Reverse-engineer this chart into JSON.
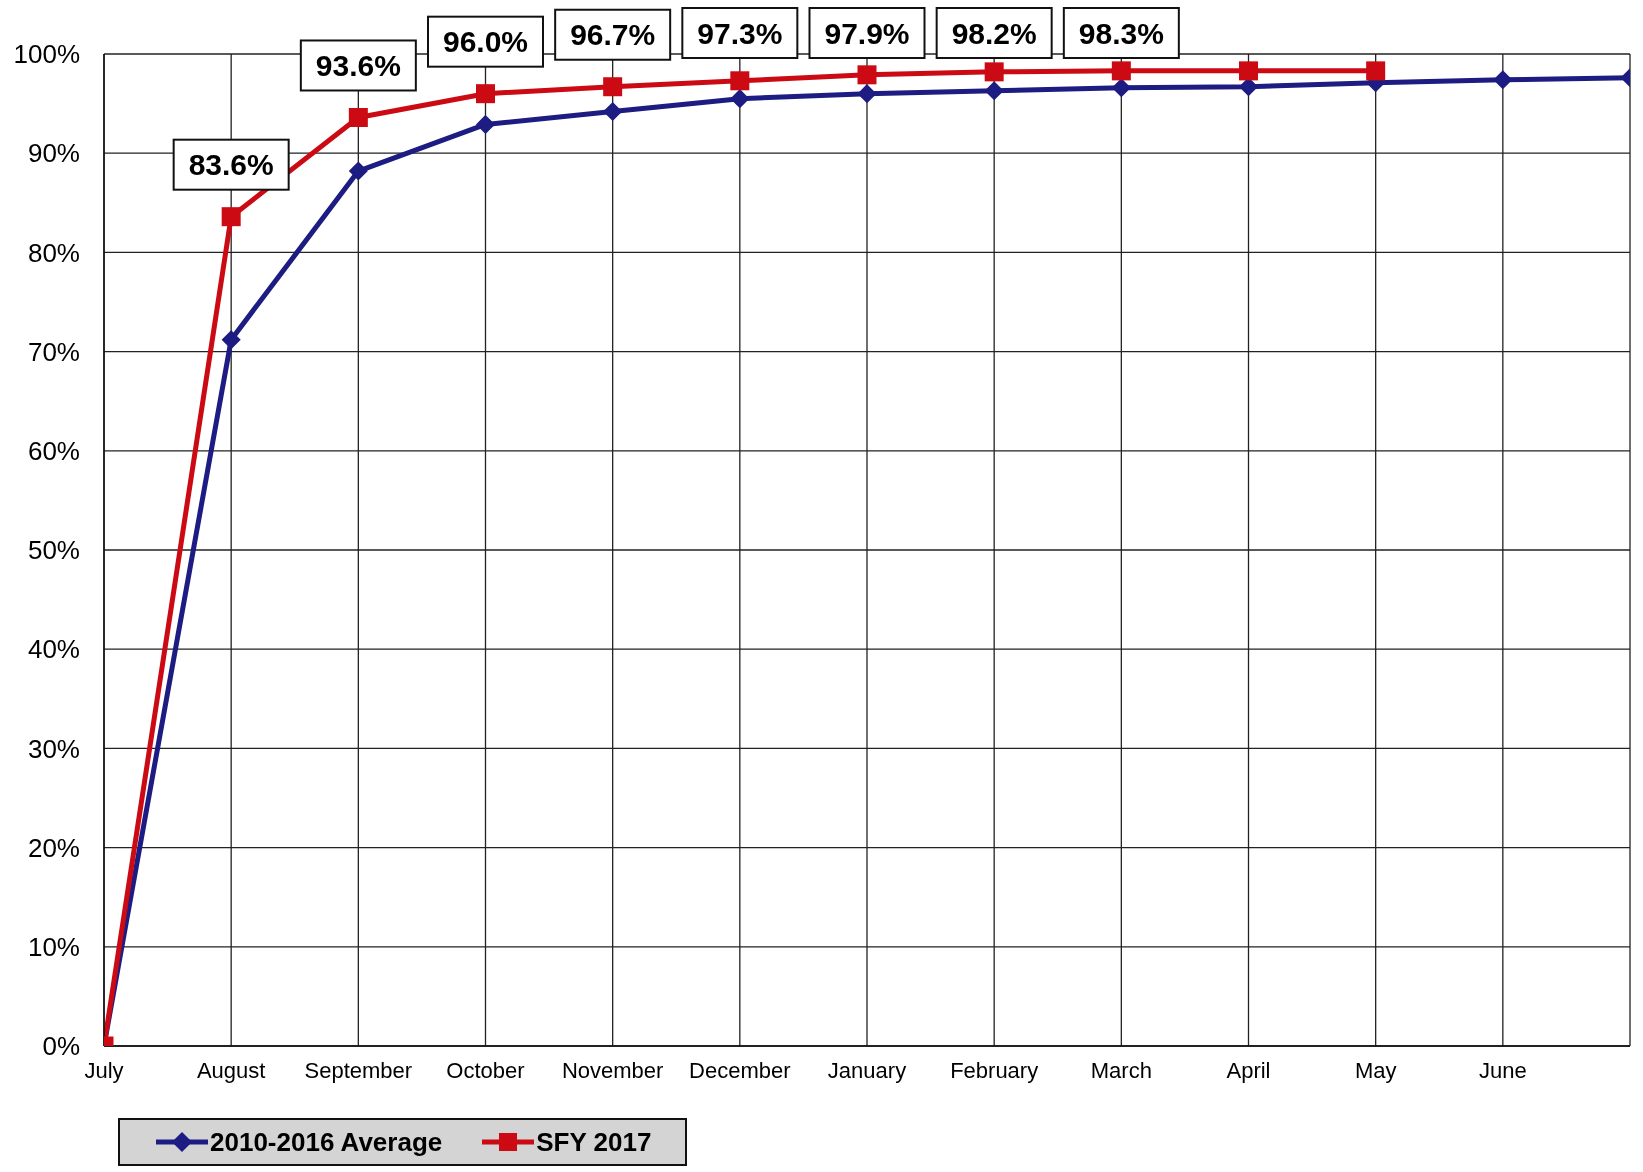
{
  "chart_data": {
    "type": "line",
    "categories": [
      "July",
      "August",
      "September",
      "October",
      "November",
      "December",
      "January",
      "February",
      "March",
      "April",
      "May",
      "June",
      null
    ],
    "series": [
      {
        "name": "2010-2016 Average",
        "color": "#1c1c82",
        "marker": "diamond",
        "values": [
          0,
          71.2,
          88.2,
          92.9,
          94.2,
          95.5,
          96.0,
          96.3,
          96.6,
          96.7,
          97.1,
          97.4,
          97.6
        ]
      },
      {
        "name": "SFY 2017",
        "color": "#cc0a14",
        "marker": "square",
        "values": [
          0,
          83.6,
          93.6,
          96.0,
          96.7,
          97.3,
          97.9,
          98.2,
          98.3,
          98.3,
          98.3,
          null,
          null
        ],
        "value_labels": [
          null,
          "83.6%",
          "93.6%",
          "96.0%",
          "96.7%",
          "97.3%",
          "97.9%",
          "98.2%",
          "98.3%",
          null,
          null,
          null,
          null
        ]
      }
    ],
    "ylim": [
      0,
      100
    ],
    "yticks": [
      {
        "value": 0,
        "label": "0%"
      },
      {
        "value": 10,
        "label": "10%"
      },
      {
        "value": 20,
        "label": "20%"
      },
      {
        "value": 30,
        "label": "30%"
      },
      {
        "value": 40,
        "label": "40%"
      },
      {
        "value": 50,
        "label": "50%"
      },
      {
        "value": 60,
        "label": "60%"
      },
      {
        "value": 70,
        "label": "70%"
      },
      {
        "value": 80,
        "label": "80%"
      },
      {
        "value": 90,
        "label": "90%"
      },
      {
        "value": 100,
        "label": "100%"
      }
    ],
    "grid": true,
    "legend": "bottom left",
    "line_style": "solid"
  }
}
